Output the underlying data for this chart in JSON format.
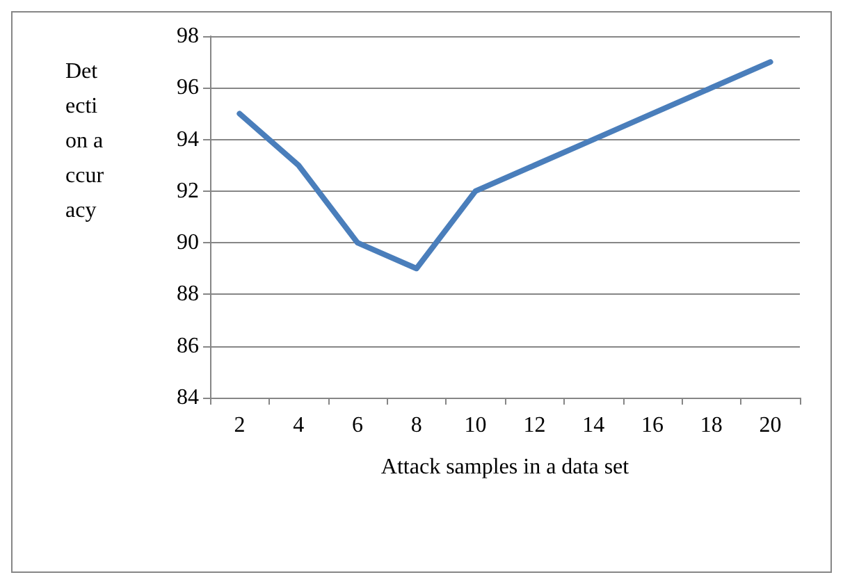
{
  "chart_data": {
    "type": "line",
    "xlabel": "Attack samples in a data set",
    "ylabel": "Detection accuracy",
    "categories": [
      "2",
      "4",
      "6",
      "8",
      "10",
      "12",
      "14",
      "16",
      "18",
      "20"
    ],
    "series": [
      {
        "color": "#4a7ebb",
        "values": [
          95,
          93,
          90,
          89,
          92,
          93,
          94,
          95,
          96,
          97
        ]
      }
    ],
    "ylim": [
      84,
      98
    ],
    "yticks": [
      84,
      86,
      88,
      90,
      92,
      94,
      96,
      98
    ],
    "grid": "y",
    "marker": "none",
    "line_style": "solid"
  }
}
